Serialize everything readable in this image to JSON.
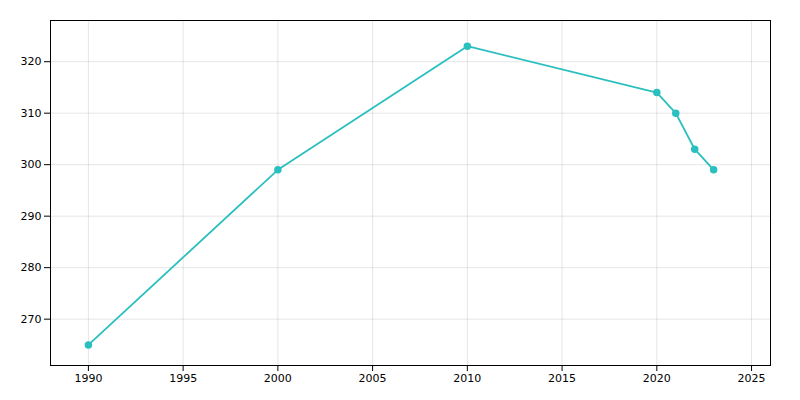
{
  "chart_data": {
    "type": "line",
    "x": [
      1990,
      2000,
      2010,
      2020,
      2021,
      2022,
      2023
    ],
    "values": [
      265,
      299,
      323,
      314,
      310,
      303,
      299
    ],
    "color": "#2bbfbf",
    "marker": "circle",
    "xlim": [
      1988,
      2026
    ],
    "xticks": [
      1990,
      1995,
      2000,
      2005,
      2010,
      2015,
      2020,
      2025
    ],
    "ylim": [
      261,
      328
    ],
    "yticks": [
      270,
      280,
      290,
      300,
      310,
      320
    ],
    "grid": true
  }
}
